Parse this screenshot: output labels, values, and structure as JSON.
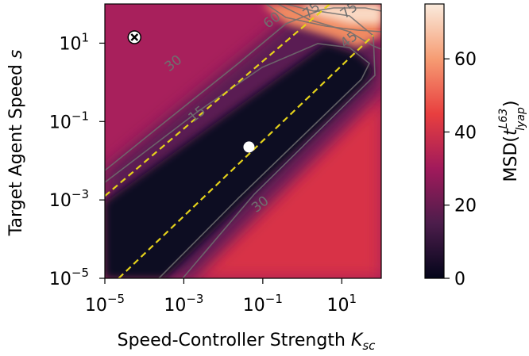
{
  "chart_data": {
    "type": "heatmap",
    "title": "",
    "xlabel_main": "Speed-Controller Strength ",
    "xlabel_sym": "K",
    "xlabel_sub": "sc",
    "ylabel_main": "Target Agent Speed ",
    "ylabel_sym": "s",
    "x_scale": "log10",
    "y_scale": "log10",
    "xlim_log10": [
      -5,
      2
    ],
    "ylim_log10": [
      -5,
      2
    ],
    "x_ticks": [
      {
        "log10": -5,
        "base": "10",
        "exp": "−5"
      },
      {
        "log10": -3,
        "base": "10",
        "exp": "−3"
      },
      {
        "log10": -1,
        "base": "10",
        "exp": "−1"
      },
      {
        "log10": 1,
        "base": "10",
        "exp": "1"
      }
    ],
    "y_ticks": [
      {
        "log10": -5,
        "base": "10",
        "exp": "−5"
      },
      {
        "log10": -3,
        "base": "10",
        "exp": "−3"
      },
      {
        "log10": -1,
        "base": "10",
        "exp": "−1"
      },
      {
        "log10": 1,
        "base": "10",
        "exp": "1"
      }
    ],
    "colorbar": {
      "label_main": "MSD(",
      "label_t": "t",
      "label_sup": "L63",
      "label_sub": "lyap",
      "label_close": ")",
      "range": [
        0,
        75
      ],
      "ticks": [
        0,
        20,
        40,
        60
      ],
      "colors": [
        "#03051a",
        "#4c1d4b",
        "#a11a5b",
        "#e83f3f",
        "#f69c73",
        "#faebdd"
      ]
    },
    "contour_labels": [
      {
        "text": "15",
        "x_log10": -2.6,
        "y_log10": -0.9
      },
      {
        "text": "30",
        "x_log10": -3.2,
        "y_log10": 0.4
      },
      {
        "text": "30",
        "x_log10": -1.0,
        "y_log10": -3.2
      },
      {
        "text": "45",
        "x_log10": 1.25,
        "y_log10": 1.0
      },
      {
        "text": "60",
        "x_log10": -0.7,
        "y_log10": 1.5
      },
      {
        "text": "75",
        "x_log10": 0.3,
        "y_log10": 1.75
      },
      {
        "text": "75",
        "x_log10": 1.25,
        "y_log10": 1.75
      }
    ],
    "boundary_lines": [
      {
        "style": "dashed",
        "color": "#e5d21b",
        "points_log10": [
          [
            -5,
            -2.9
          ],
          [
            0.7,
            2.0
          ]
        ]
      },
      {
        "style": "dashed",
        "color": "#e5d21b",
        "points_log10": [
          [
            -4.65,
            -5
          ],
          [
            1.8,
            1.2
          ]
        ]
      }
    ],
    "markers": [
      {
        "shape": "x-in-circle",
        "x_log10": -4.25,
        "y_log10": 1.15
      },
      {
        "shape": "circle",
        "x_log10": -1.35,
        "y_log10": -1.65
      }
    ]
  }
}
